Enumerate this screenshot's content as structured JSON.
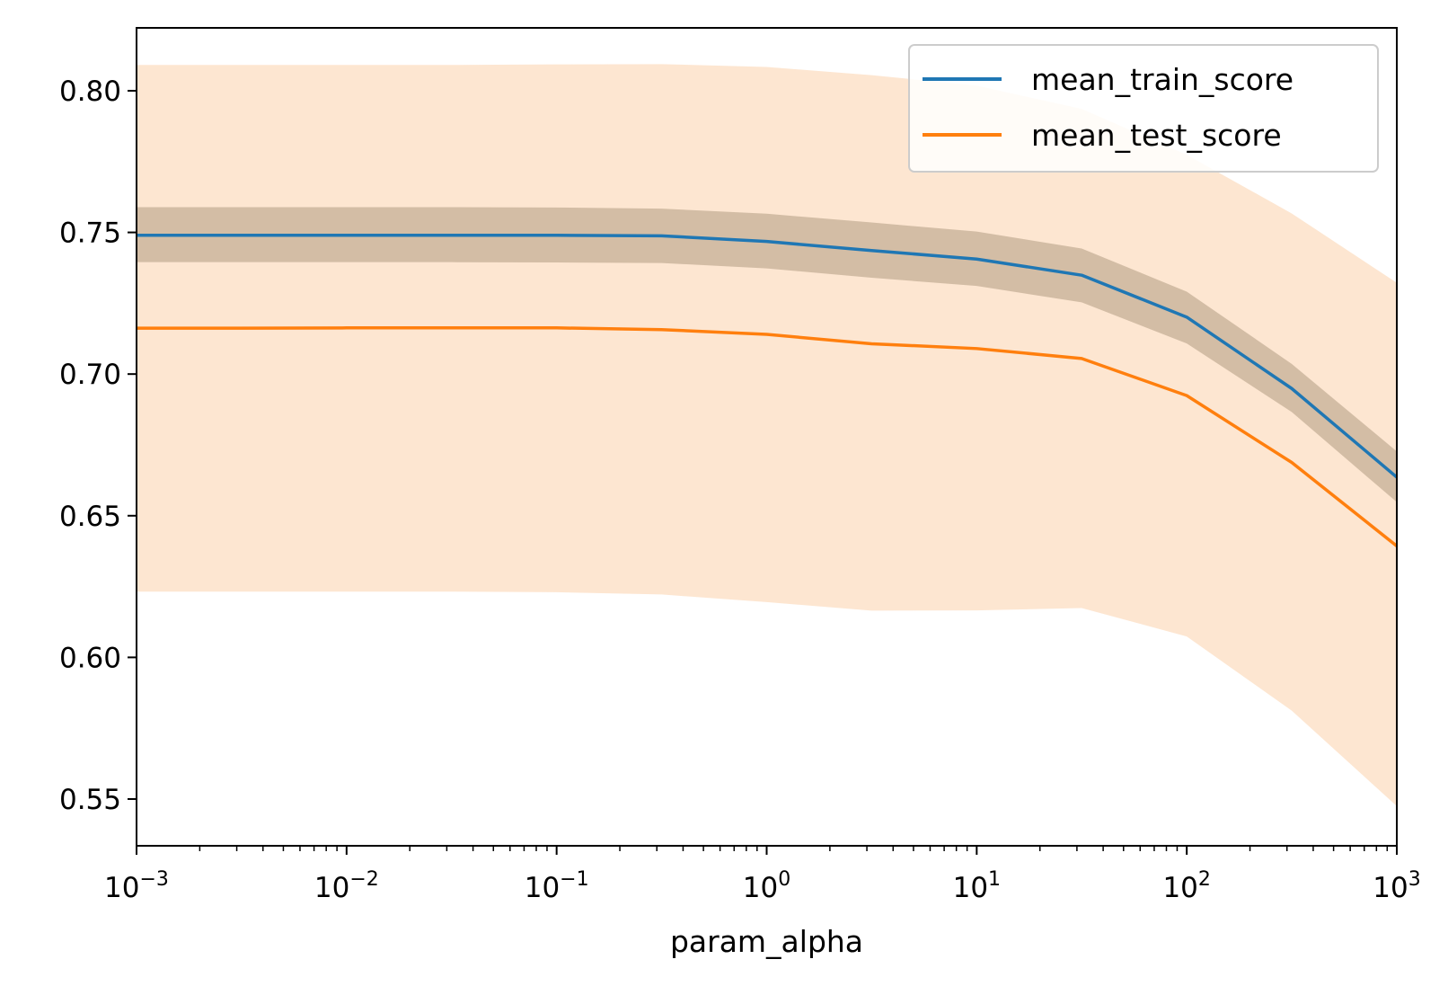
{
  "chart_data": {
    "type": "line",
    "title": "",
    "xlabel": "param_alpha",
    "ylabel": "",
    "x_scale": "log",
    "xlim": [
      0.001,
      1000
    ],
    "ylim": [
      0.5335,
      0.8222
    ],
    "x_ticks": [
      {
        "value": 0.001,
        "base": "10",
        "exp": "−3"
      },
      {
        "value": 0.01,
        "base": "10",
        "exp": "−2"
      },
      {
        "value": 0.1,
        "base": "10",
        "exp": "−1"
      },
      {
        "value": 1,
        "base": "10",
        "exp": "0"
      },
      {
        "value": 10,
        "base": "10",
        "exp": "1"
      },
      {
        "value": 100,
        "base": "10",
        "exp": "2"
      },
      {
        "value": 1000,
        "base": "10",
        "exp": "3"
      }
    ],
    "y_ticks": [
      {
        "value": 0.55,
        "label": "0.55"
      },
      {
        "value": 0.6,
        "label": "0.60"
      },
      {
        "value": 0.65,
        "label": "0.65"
      },
      {
        "value": 0.7,
        "label": "0.70"
      },
      {
        "value": 0.75,
        "label": "0.75"
      },
      {
        "value": 0.8,
        "label": "0.80"
      }
    ],
    "grid": false,
    "legend_position": "top-right",
    "x": [
      0.001,
      0.00316,
      0.01,
      0.0316,
      0.1,
      0.316,
      1,
      3.16,
      10,
      31.6,
      100,
      316,
      1000
    ],
    "series": [
      {
        "name": "mean_train_score",
        "color": "#1f77b4",
        "band_color": "#b09a82",
        "values": [
          0.749,
          0.749,
          0.749,
          0.749,
          0.749,
          0.7488,
          0.7468,
          0.7436,
          0.7406,
          0.7349,
          0.7201,
          0.6949,
          0.6636
        ],
        "band_lower": [
          0.7395,
          0.7395,
          0.7395,
          0.7395,
          0.7394,
          0.7392,
          0.7373,
          0.734,
          0.7311,
          0.7253,
          0.7108,
          0.6866,
          0.6548
        ],
        "band_upper": [
          0.7589,
          0.7589,
          0.7589,
          0.7589,
          0.7588,
          0.7584,
          0.7566,
          0.7535,
          0.7503,
          0.7443,
          0.7291,
          0.7036,
          0.6727
        ]
      },
      {
        "name": "mean_test_score",
        "color": "#ff7f0e",
        "band_color": "#fde3cc",
        "values": [
          0.7162,
          0.7162,
          0.7163,
          0.7163,
          0.7163,
          0.7157,
          0.714,
          0.7107,
          0.709,
          0.7055,
          0.6924,
          0.6688,
          0.6393
        ],
        "band_lower": [
          0.6232,
          0.6232,
          0.6232,
          0.6232,
          0.623,
          0.6222,
          0.6195,
          0.6165,
          0.6166,
          0.6174,
          0.6074,
          0.5812,
          0.5475
        ],
        "band_upper": [
          0.8091,
          0.8091,
          0.8091,
          0.8091,
          0.8093,
          0.8094,
          0.8084,
          0.8055,
          0.8018,
          0.7936,
          0.7774,
          0.7567,
          0.7322
        ]
      }
    ]
  }
}
